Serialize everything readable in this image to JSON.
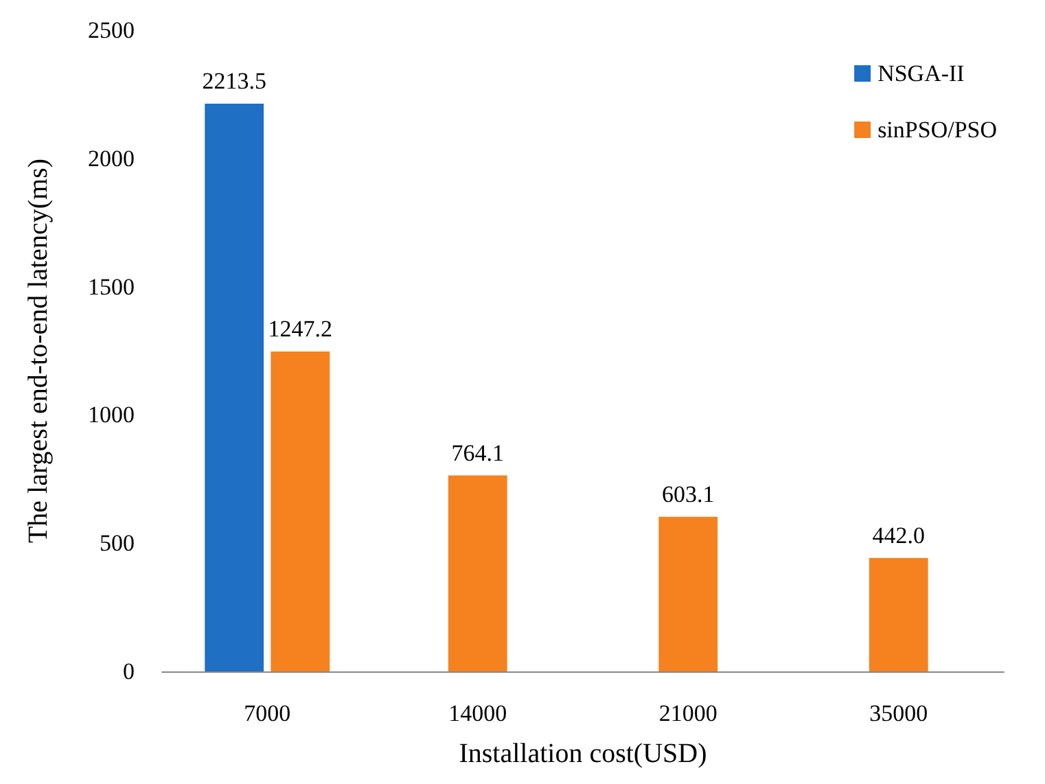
{
  "chart_data": {
    "type": "bar",
    "xlabel": "Installation cost(USD)",
    "ylabel": "The largest end-to-end latency(ms)",
    "categories": [
      "7000",
      "14000",
      "21000",
      "35000"
    ],
    "series": [
      {
        "name": "NSGA-II",
        "color": "#1f6fc5",
        "values": [
          2213.5,
          null,
          null,
          null
        ],
        "value_labels": [
          "2213.5",
          null,
          null,
          null
        ]
      },
      {
        "name": "sinPSO/PSO",
        "color": "#f5821f",
        "values": [
          1247.2,
          764.1,
          603.1,
          442.0
        ],
        "value_labels": [
          "1247.2",
          "764.1",
          "603.1",
          "442.0"
        ]
      }
    ],
    "ylim": [
      0,
      2500
    ],
    "yticks": [
      0,
      500,
      1000,
      1500,
      2000,
      2500
    ],
    "grid": false,
    "legend": "top right"
  }
}
